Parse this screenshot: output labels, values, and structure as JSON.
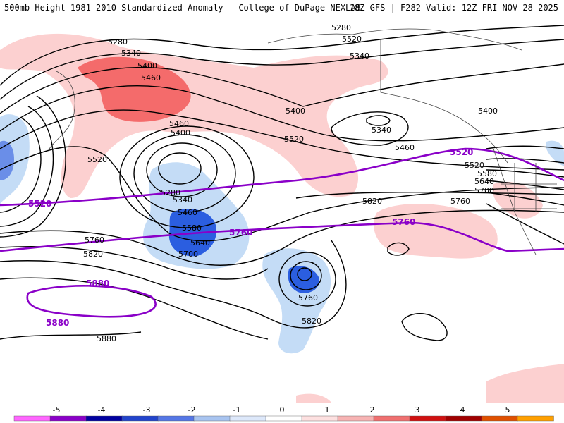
{
  "header": {
    "left": "500mb Height 1981-2010 Standardized Anomaly | College of DuPage NEXLAB",
    "right": "18Z GFS | F282 Valid: 12Z FRI NOV 28 2025"
  },
  "map": {
    "contour_labels": [
      "5280",
      "5340",
      "5400",
      "5460",
      "5520",
      "5280",
      "5340",
      "5460",
      "5520",
      "5400",
      "5340",
      "5400",
      "5460",
      "5520",
      "5580",
      "5640",
      "5700",
      "5760",
      "5820",
      "5760",
      "5820",
      "5880",
      "5400",
      "5340",
      "5280",
      "5460",
      "5520",
      "5580",
      "5640",
      "5700",
      "5760",
      "5820"
    ],
    "purple_labels": [
      "5520",
      "5760",
      "5880",
      "5880",
      "5520",
      "5760"
    ]
  },
  "colorbar": {
    "ticks": [
      "-5",
      "-4",
      "-3",
      "-2",
      "-1",
      "0",
      "1",
      "2",
      "3",
      "4",
      "5"
    ],
    "colors": [
      "#ff66ff",
      "#8a00c8",
      "#0000a0",
      "#2244cc",
      "#5577e6",
      "#a8c4f0",
      "#dde8fa",
      "#ffffff",
      "#fde0e0",
      "#f7b3b3",
      "#f07070",
      "#d01010",
      "#a00000",
      "#e05000",
      "#ffa000"
    ]
  },
  "colors": {
    "purple_contour": "#8a00c8",
    "neg_light": "#c4dcf6",
    "neg_mid": "#6a8ee8",
    "neg_dark": "#2b5ee0",
    "pos_light": "#fcd0d0",
    "pos_mid": "#f46b6b"
  }
}
